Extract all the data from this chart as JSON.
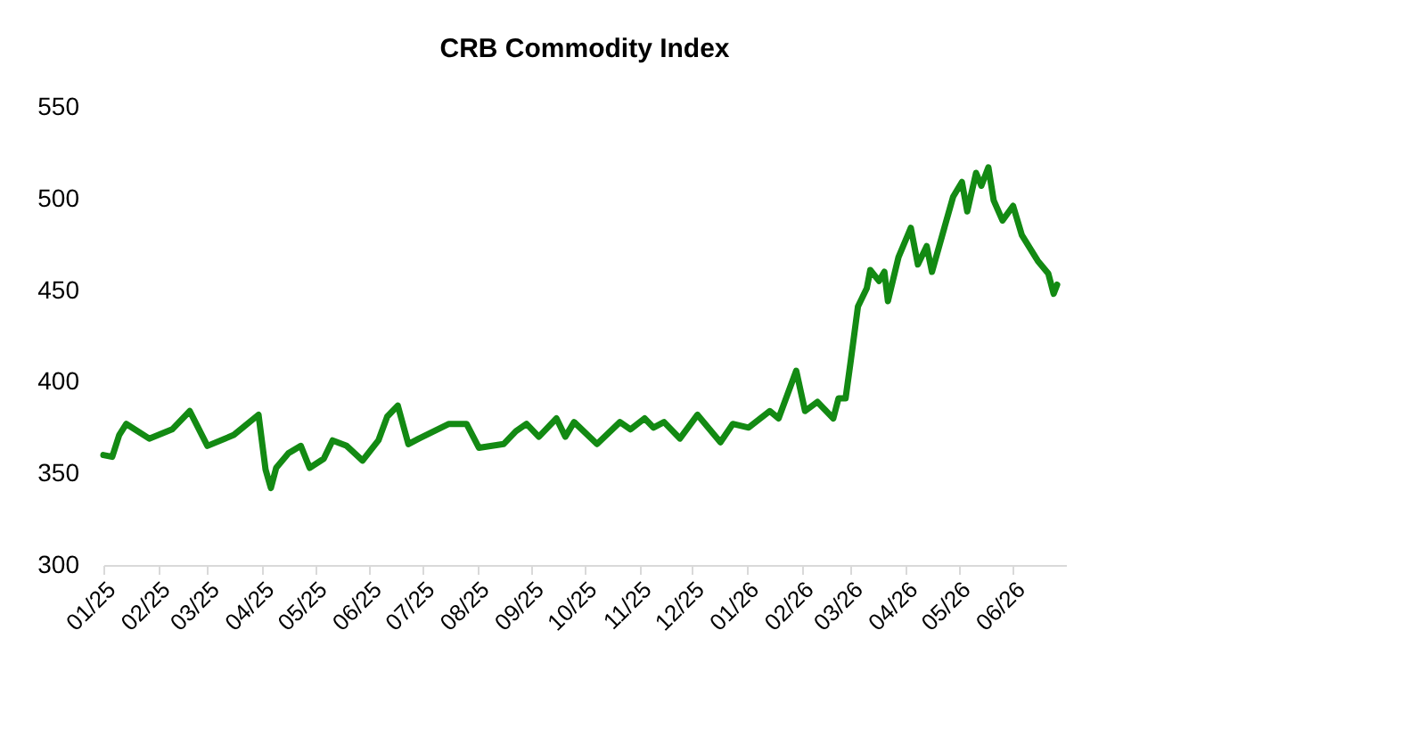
{
  "chart_data": {
    "type": "line",
    "title": "CRB Commodity Index",
    "x": [
      "2025-01-01",
      "2025-01-06",
      "2025-01-10",
      "2025-01-14",
      "2025-01-27",
      "2025-02-09",
      "2025-02-19",
      "2025-03-01",
      "2025-03-16",
      "2025-03-30",
      "2025-04-03",
      "2025-04-06",
      "2025-04-09",
      "2025-04-16",
      "2025-04-23",
      "2025-04-28",
      "2025-05-06",
      "2025-05-11",
      "2025-05-19",
      "2025-05-28",
      "2025-06-06",
      "2025-06-11",
      "2025-06-17",
      "2025-06-23",
      "2025-06-29",
      "2025-07-16",
      "2025-07-26",
      "2025-08-02",
      "2025-08-16",
      "2025-08-23",
      "2025-08-29",
      "2025-09-05",
      "2025-09-15",
      "2025-09-20",
      "2025-09-25",
      "2025-10-08",
      "2025-10-21",
      "2025-10-27",
      "2025-11-04",
      "2025-11-09",
      "2025-11-15",
      "2025-11-24",
      "2025-12-04",
      "2025-12-17",
      "2025-12-24",
      "2026-01-02",
      "2026-01-14",
      "2026-01-19",
      "2026-01-29",
      "2026-02-03",
      "2026-02-10",
      "2026-02-19",
      "2026-02-22",
      "2026-02-26",
      "2026-03-01",
      "2026-03-05",
      "2026-03-10",
      "2026-03-12",
      "2026-03-17",
      "2026-03-20",
      "2026-03-22",
      "2026-03-28",
      "2026-04-04",
      "2026-04-08",
      "2026-04-13",
      "2026-04-16",
      "2026-04-23",
      "2026-04-28",
      "2026-05-03",
      "2026-05-06",
      "2026-05-11",
      "2026-05-14",
      "2026-05-18",
      "2026-05-21",
      "2026-05-26",
      "2026-06-01",
      "2026-06-06",
      "2026-06-15",
      "2026-06-21",
      "2026-06-24",
      "2026-06-26"
    ],
    "series": [
      {
        "color": "#138a13",
        "values": [
          360,
          359,
          371,
          377,
          369,
          374,
          384,
          365,
          371,
          382,
          352,
          342,
          353,
          361,
          365,
          353,
          358,
          368,
          365,
          357,
          368,
          381,
          387,
          366,
          369,
          377,
          377,
          364,
          366,
          373,
          377,
          370,
          380,
          370,
          378,
          366,
          378,
          374,
          380,
          375,
          378,
          369,
          382,
          367,
          377,
          375,
          384,
          380,
          406,
          384,
          389,
          380,
          391,
          391,
          412,
          441,
          451,
          461,
          455,
          460,
          444,
          468,
          484,
          464,
          474,
          460,
          484,
          501,
          509,
          493,
          514,
          507,
          517,
          499,
          488,
          496,
          480,
          466,
          459,
          448,
          453
        ]
      }
    ],
    "xlim": [
      "2025-01-01",
      "2026-07-01"
    ],
    "xticks": [
      {
        "value": "2025-01-01",
        "label": "01/25"
      },
      {
        "value": "2025-02-01",
        "label": "02/25"
      },
      {
        "value": "2025-03-01",
        "label": "03/25"
      },
      {
        "value": "2025-04-01",
        "label": "04/25"
      },
      {
        "value": "2025-05-01",
        "label": "05/25"
      },
      {
        "value": "2025-06-01",
        "label": "06/25"
      },
      {
        "value": "2025-07-01",
        "label": "07/25"
      },
      {
        "value": "2025-08-01",
        "label": "08/25"
      },
      {
        "value": "2025-09-01",
        "label": "09/25"
      },
      {
        "value": "2025-10-01",
        "label": "10/25"
      },
      {
        "value": "2025-11-01",
        "label": "11/25"
      },
      {
        "value": "2025-12-01",
        "label": "12/25"
      },
      {
        "value": "2026-01-01",
        "label": "01/26"
      },
      {
        "value": "2026-02-01",
        "label": "02/26"
      },
      {
        "value": "2026-03-01",
        "label": "03/26"
      },
      {
        "value": "2026-04-01",
        "label": "04/26"
      },
      {
        "value": "2026-05-01",
        "label": "05/26"
      },
      {
        "value": "2026-06-01",
        "label": "06/26"
      }
    ],
    "ylim": [
      300,
      550
    ],
    "yticks": [
      300,
      350,
      400,
      450,
      500,
      550
    ],
    "grid": false,
    "marker": "none",
    "line_style": "solid"
  }
}
